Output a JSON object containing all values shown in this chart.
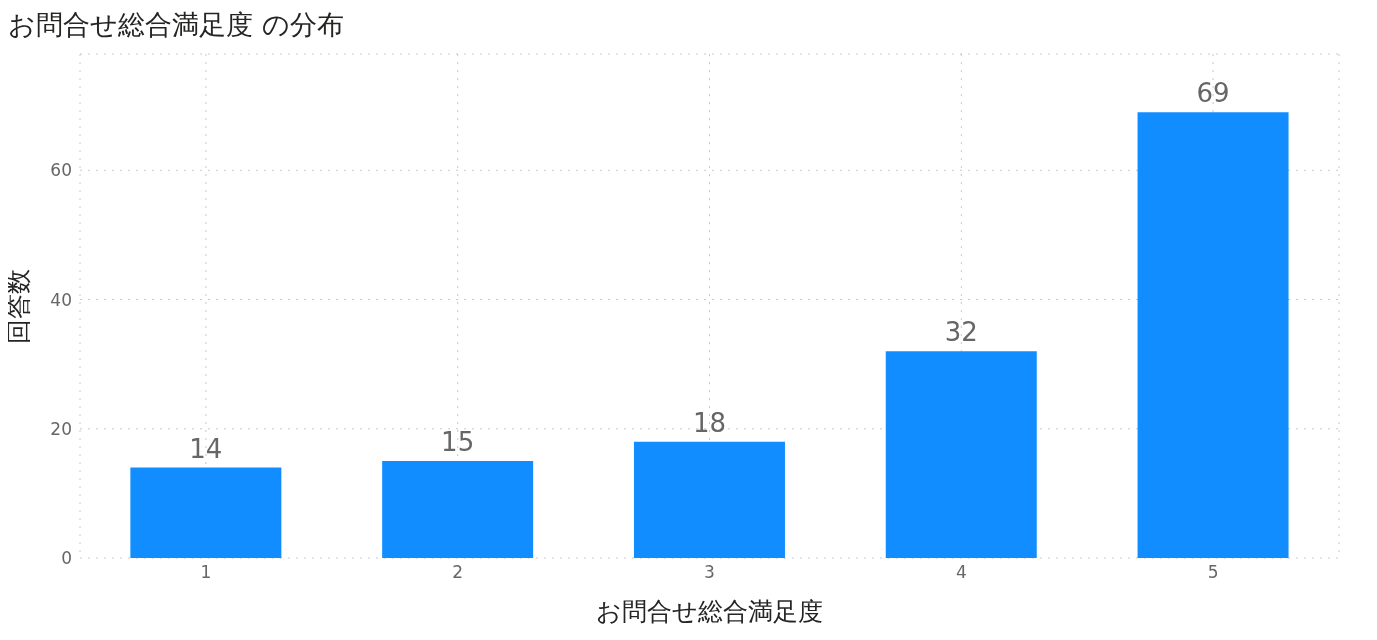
{
  "chart_data": {
    "type": "bar",
    "title": "お問合せ総合満足度 の分布",
    "xlabel": "お問合せ総合満足度",
    "ylabel": "回答数",
    "categories": [
      "1",
      "2",
      "3",
      "4",
      "5"
    ],
    "values": [
      14,
      15,
      18,
      32,
      69
    ],
    "color": "#118dff",
    "ylim": [
      0,
      78
    ],
    "yticks": [
      0,
      20,
      40,
      60
    ],
    "grid": true,
    "data_labels": true
  }
}
